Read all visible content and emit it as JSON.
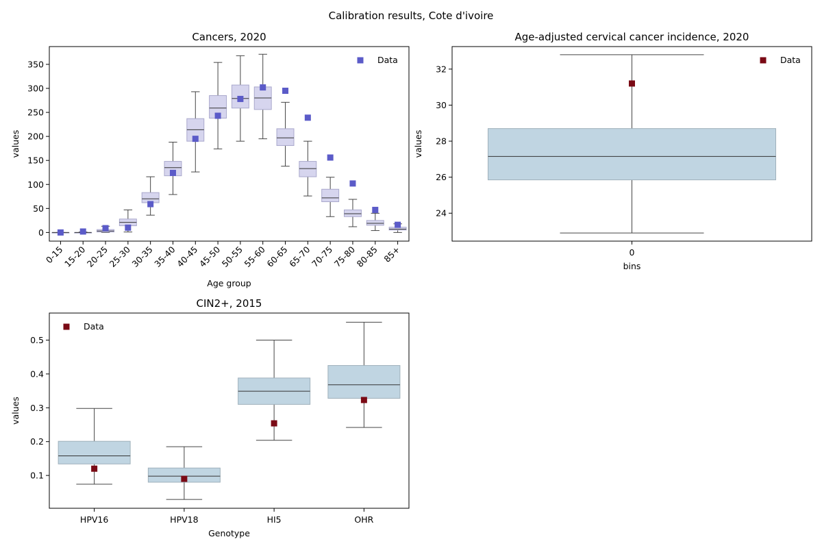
{
  "figure": {
    "suptitle": "Calibration results, Cote d'ivoire",
    "colors": {
      "cancer_box_fill": "#d6d5ee",
      "cancer_box_edge": "#a9a8cc",
      "cancer_marker": "#5b5bc8",
      "blue_box_fill": "#c0d5e2",
      "blue_box_edge": "#9fb0bb",
      "dark_marker": "#7a0a15",
      "whisker": "#444444",
      "median": "#333333"
    }
  },
  "chart_data": [
    {
      "id": "cancers",
      "type": "box",
      "title": "Cancers, 2020",
      "xlabel": "Age group",
      "ylabel": "values",
      "ylim": [
        -18,
        387
      ],
      "yticks": [
        0,
        50,
        100,
        150,
        200,
        250,
        300,
        350
      ],
      "categories": [
        "0-15",
        "15-20",
        "20-25",
        "25-30",
        "30-35",
        "35-40",
        "40-45",
        "45-50",
        "50-55",
        "55-60",
        "60-65",
        "65-70",
        "70-75",
        "75-80",
        "80-85",
        "85+"
      ],
      "xtick_rotation": -45,
      "legend": {
        "label": "Data",
        "position": "top-right"
      },
      "boxes": [
        {
          "whislo": 0,
          "q1": 0,
          "med": 0,
          "q3": 0,
          "whishi": 0
        },
        {
          "whislo": 0,
          "q1": 0,
          "med": 0,
          "q3": 0,
          "whishi": 1
        },
        {
          "whislo": 0,
          "q1": 1,
          "med": 3,
          "q3": 6,
          "whishi": 13
        },
        {
          "whislo": 1,
          "q1": 14,
          "med": 21,
          "q3": 28,
          "whishi": 47
        },
        {
          "whislo": 36,
          "q1": 62,
          "med": 70,
          "q3": 83,
          "whishi": 116
        },
        {
          "whislo": 79,
          "q1": 118,
          "med": 135,
          "q3": 148,
          "whishi": 188
        },
        {
          "whislo": 126,
          "q1": 190,
          "med": 214,
          "q3": 237,
          "whishi": 293
        },
        {
          "whislo": 174,
          "q1": 238,
          "med": 259,
          "q3": 285,
          "whishi": 354
        },
        {
          "whislo": 190,
          "q1": 259,
          "med": 279,
          "q3": 307,
          "whishi": 368
        },
        {
          "whislo": 195,
          "q1": 256,
          "med": 280,
          "q3": 303,
          "whishi": 371
        },
        {
          "whislo": 138,
          "q1": 181,
          "med": 197,
          "q3": 216,
          "whishi": 271
        },
        {
          "whislo": 76,
          "q1": 116,
          "med": 133,
          "q3": 148,
          "whishi": 190
        },
        {
          "whislo": 33,
          "q1": 64,
          "med": 72,
          "q3": 90,
          "whishi": 115
        },
        {
          "whislo": 12,
          "q1": 33,
          "med": 39,
          "q3": 47,
          "whishi": 69
        },
        {
          "whislo": 4,
          "q1": 15,
          "med": 19,
          "q3": 25,
          "whishi": 40
        },
        {
          "whislo": 0,
          "q1": 5,
          "med": 7,
          "q3": 11,
          "whishi": 18
        }
      ],
      "data_points": [
        0,
        2,
        9,
        10,
        59,
        124,
        195,
        243,
        278,
        302,
        295,
        239,
        156,
        102,
        47,
        16
      ]
    },
    {
      "id": "incidence",
      "type": "box",
      "title": "Age-adjusted cervical cancer incidence, 2020",
      "xlabel": "bins",
      "ylabel": "values",
      "ylim": [
        22.45,
        33.25
      ],
      "yticks": [
        24,
        26,
        28,
        30,
        32
      ],
      "categories": [
        "0"
      ],
      "legend": {
        "label": "Data",
        "position": "top-right"
      },
      "boxes": [
        {
          "whislo": 22.9,
          "q1": 25.85,
          "med": 27.15,
          "q3": 28.7,
          "whishi": 32.8
        }
      ],
      "data_points": [
        31.2
      ]
    },
    {
      "id": "cin2",
      "type": "box",
      "title": "CIN2+, 2015",
      "xlabel": "Genotype",
      "ylabel": "values",
      "ylim": [
        0.003,
        0.58
      ],
      "yticks": [
        0.1,
        0.2,
        0.3,
        0.4,
        0.5
      ],
      "categories": [
        "HPV16",
        "HPV18",
        "HI5",
        "OHR"
      ],
      "legend": {
        "label": "Data",
        "position": "top-left"
      },
      "boxes": [
        {
          "whislo": 0.074,
          "q1": 0.134,
          "med": 0.158,
          "q3": 0.201,
          "whishi": 0.298
        },
        {
          "whislo": 0.029,
          "q1": 0.08,
          "med": 0.098,
          "q3": 0.122,
          "whishi": 0.185
        },
        {
          "whislo": 0.204,
          "q1": 0.31,
          "med": 0.349,
          "q3": 0.388,
          "whishi": 0.5
        },
        {
          "whislo": 0.242,
          "q1": 0.328,
          "med": 0.368,
          "q3": 0.425,
          "whishi": 0.553
        }
      ],
      "data_points": [
        0.12,
        0.09,
        0.254,
        0.323
      ]
    }
  ]
}
